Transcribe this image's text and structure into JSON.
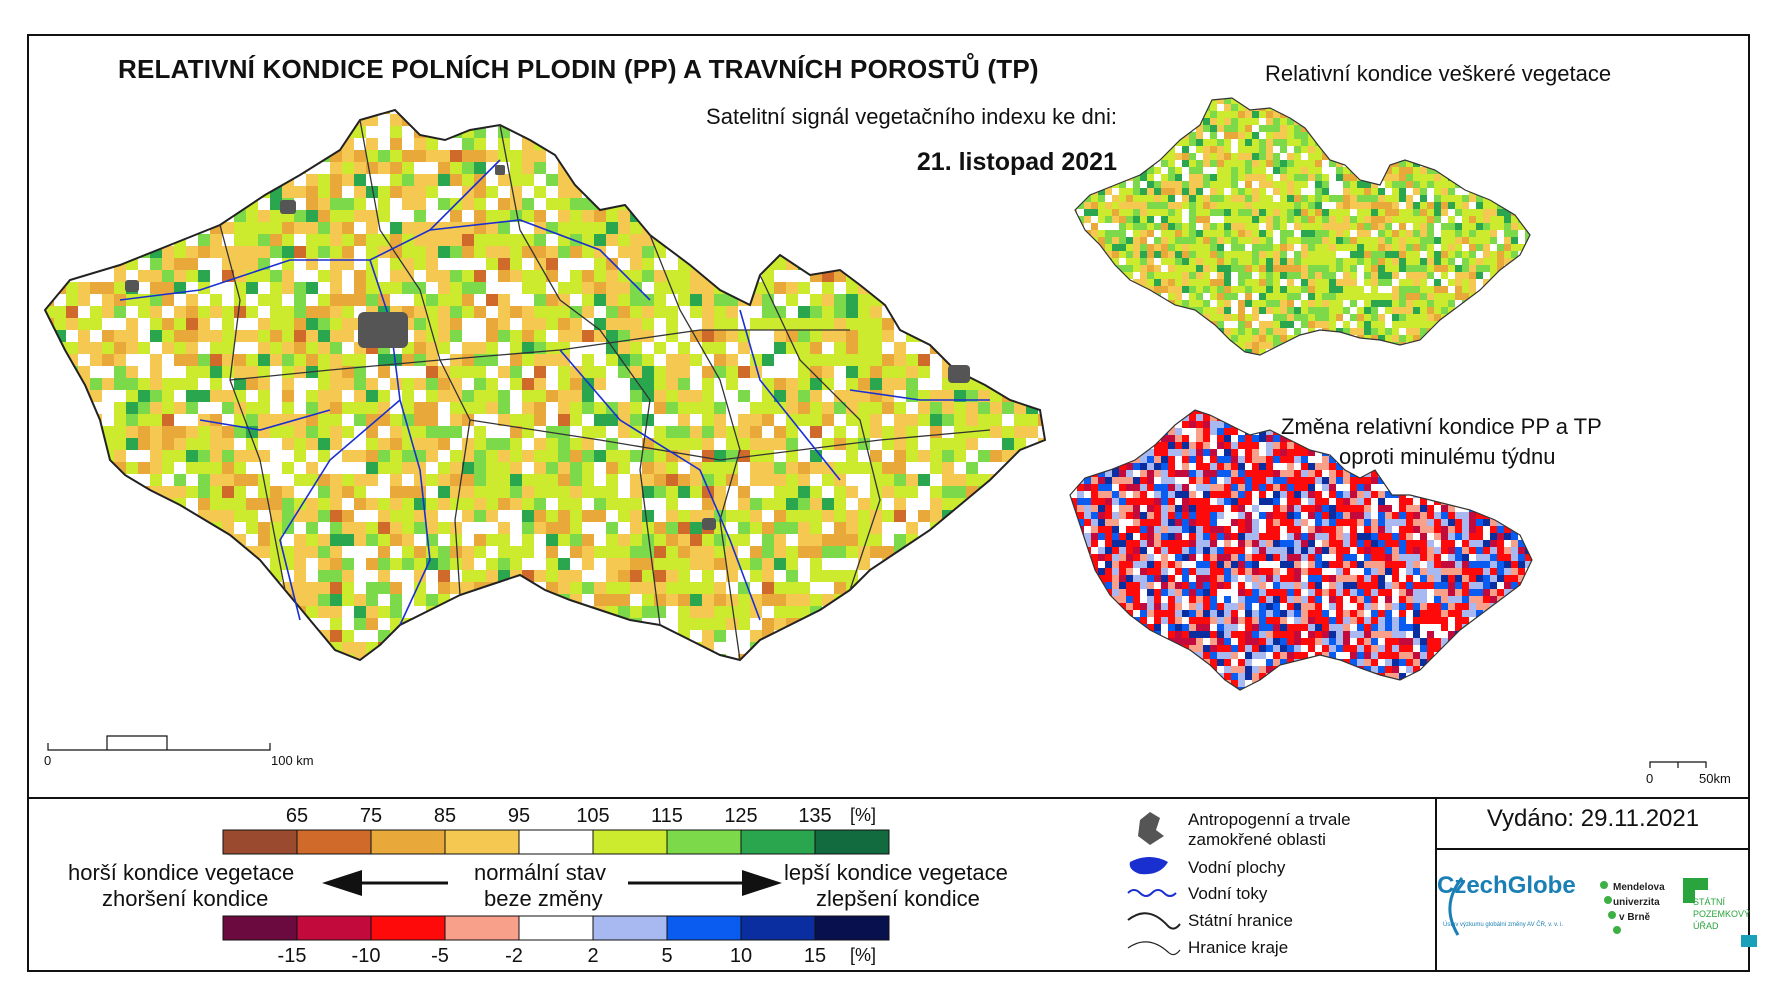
{
  "header": {
    "title": "RELATIVNÍ KONDICE POLNÍCH PLODIN (PP) A TRAVNÍCH POROSTŮ (TP)",
    "subtitle": "Satelitní signál vegetačního indexu ke dni:",
    "date": "21. listopad 2021"
  },
  "insets": {
    "top_title": "Relativní kondice veškeré vegetace",
    "bottom_title_line1": "Změna relativní kondice PP a TP",
    "bottom_title_line2": "oproti minulému týdnu"
  },
  "scale_main": {
    "zero": "0",
    "end": "100 km"
  },
  "scale_inset": {
    "zero": "0",
    "end": "50km"
  },
  "legend": {
    "condition_ticks": [
      "65",
      "75",
      "85",
      "95",
      "105",
      "115",
      "125",
      "135"
    ],
    "condition_unit": "[%]",
    "condition_colors": [
      "#9a4a2e",
      "#cf6a2a",
      "#e8a83a",
      "#f5c851",
      "#ffffff",
      "#ccea2e",
      "#7bd94a",
      "#2aa64e",
      "#116b3f"
    ],
    "change_ticks": [
      "-15",
      "-10",
      "-5",
      "-2",
      "2",
      "5",
      "10",
      "15"
    ],
    "change_unit": "[%]",
    "change_colors": [
      "#6a0a3e",
      "#c20a3c",
      "#ff0a0a",
      "#f8a08a",
      "#ffffff",
      "#a8b8f0",
      "#0a5cf0",
      "#0a2ea0",
      "#08104e"
    ],
    "worse_line1": "horší kondice vegetace",
    "worse_line2": "zhoršení kondice",
    "normal_line1": "normální stav",
    "normal_line2": "beze změny",
    "better_line1": "lepší kondice vegetace",
    "better_line2": "zlepšení kondice"
  },
  "symbols": {
    "anthropogenic_line1": "Antropogenní a trvale",
    "anthropogenic_line2": "zamokřené oblasti",
    "water_bodies": "Vodní plochy",
    "water_courses": "Vodní toky",
    "state_border": "Státní hranice",
    "region_border": "Hranice kraje"
  },
  "issued": "Vydáno: 29.11.2021",
  "logos": {
    "czechglobe": "CzechGlobe",
    "czechglobe_sub": "Ústav výzkumu globální změny AV ČR, v. v. i.",
    "mendel_line1": "Mendelova",
    "mendel_line2": "univerzita",
    "mendel_line3": "v Brně",
    "spu_line1": "STÁTNÍ",
    "spu_line2": "POZEMKOVÝ",
    "spu_line3": "ÚŘAD"
  }
}
